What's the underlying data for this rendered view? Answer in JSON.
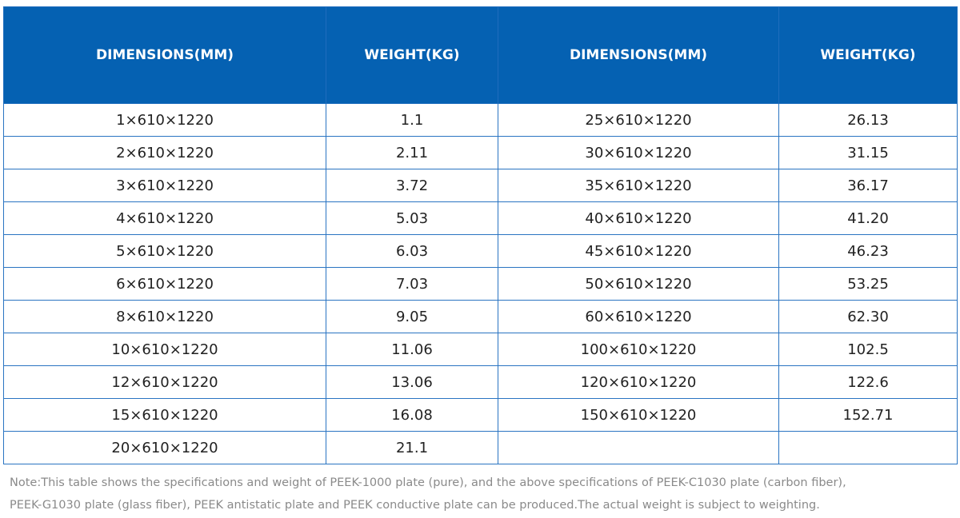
{
  "table": {
    "headers": [
      "DIMENSIONS(MM)",
      "WEIGHT(KG)",
      "DIMENSIONS(MM)",
      "WEIGHT(KG)"
    ],
    "rows": [
      [
        "1×610×1220",
        "1.1",
        "25×610×1220",
        "26.13"
      ],
      [
        "2×610×1220",
        "2.11",
        "30×610×1220",
        "31.15"
      ],
      [
        "3×610×1220",
        "3.72",
        "35×610×1220",
        "36.17"
      ],
      [
        "4×610×1220",
        "5.03",
        "40×610×1220",
        "41.20"
      ],
      [
        "5×610×1220",
        "6.03",
        "45×610×1220",
        "46.23"
      ],
      [
        "6×610×1220",
        "7.03",
        "50×610×1220",
        "53.25"
      ],
      [
        "8×610×1220",
        "9.05",
        "60×610×1220",
        "62.30"
      ],
      [
        "10×610×1220",
        "11.06",
        "100×610×1220",
        "102.5"
      ],
      [
        "12×610×1220",
        "13.06",
        "120×610×1220",
        "122.6"
      ],
      [
        "15×610×1220",
        "16.08",
        "150×610×1220",
        "152.71"
      ],
      [
        "20×610×1220",
        "21.1"
      ]
    ]
  },
  "note": {
    "lines": [
      "Note:This table shows the specifications and weight of PEEK-1000 plate (pure), and the above specifications of PEEK-C1030 plate (carbon fiber),",
      "PEEK-G1030 plate (glass fiber), PEEK antistatic plate and PEEK conductive plate can be produced.The actual weight is subject to weighting."
    ]
  }
}
